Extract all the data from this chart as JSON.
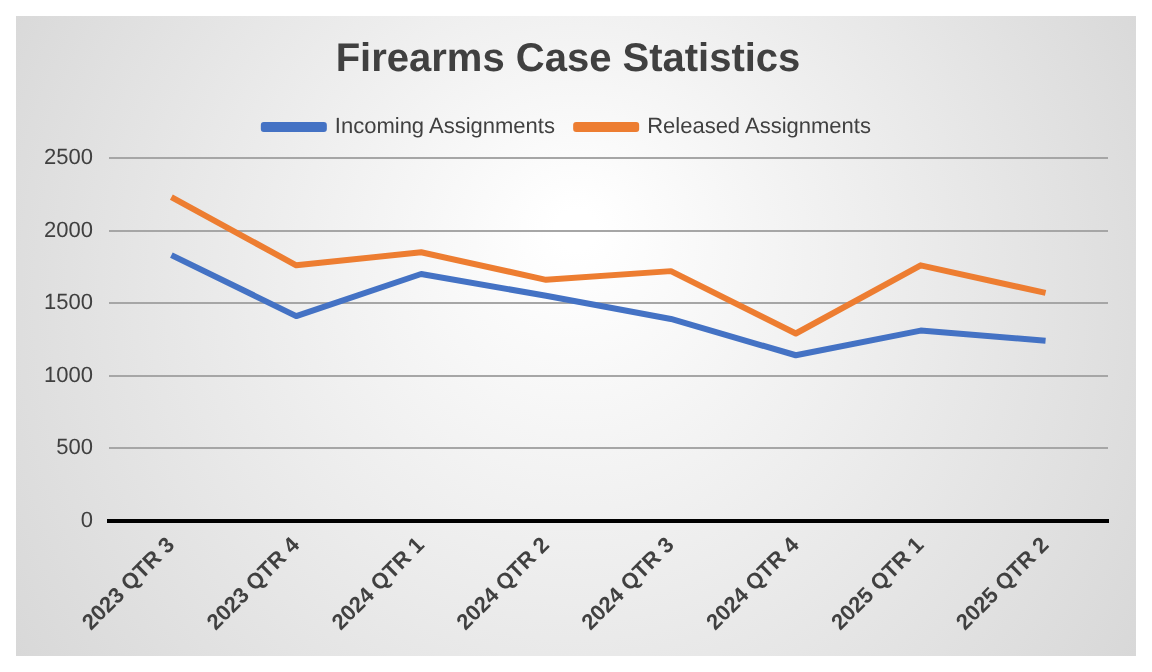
{
  "chart_data": {
    "type": "line",
    "title": "Firearms Case Statistics",
    "categories": [
      "2023 QTR 3",
      "2023 QTR 4",
      "2024 QTR 1",
      "2024 QTR 2",
      "2024 QTR 3",
      "2024 QTR 4",
      "2025 QTR 1",
      "2025 QTR 2"
    ],
    "series": [
      {
        "name": "Incoming Assignments",
        "color": "#4472c4",
        "values": [
          1830,
          1410,
          1700,
          1550,
          1390,
          1140,
          1310,
          1240
        ]
      },
      {
        "name": "Released Assignments",
        "color": "#ed7d31",
        "values": [
          2230,
          1760,
          1850,
          1660,
          1720,
          1290,
          1760,
          1570
        ]
      }
    ],
    "ylim": [
      0,
      2500
    ],
    "yticks": [
      0,
      500,
      1000,
      1500,
      2000,
      2500
    ],
    "grid": "y",
    "legend": "top",
    "marker": "none",
    "line_style": "solid"
  }
}
